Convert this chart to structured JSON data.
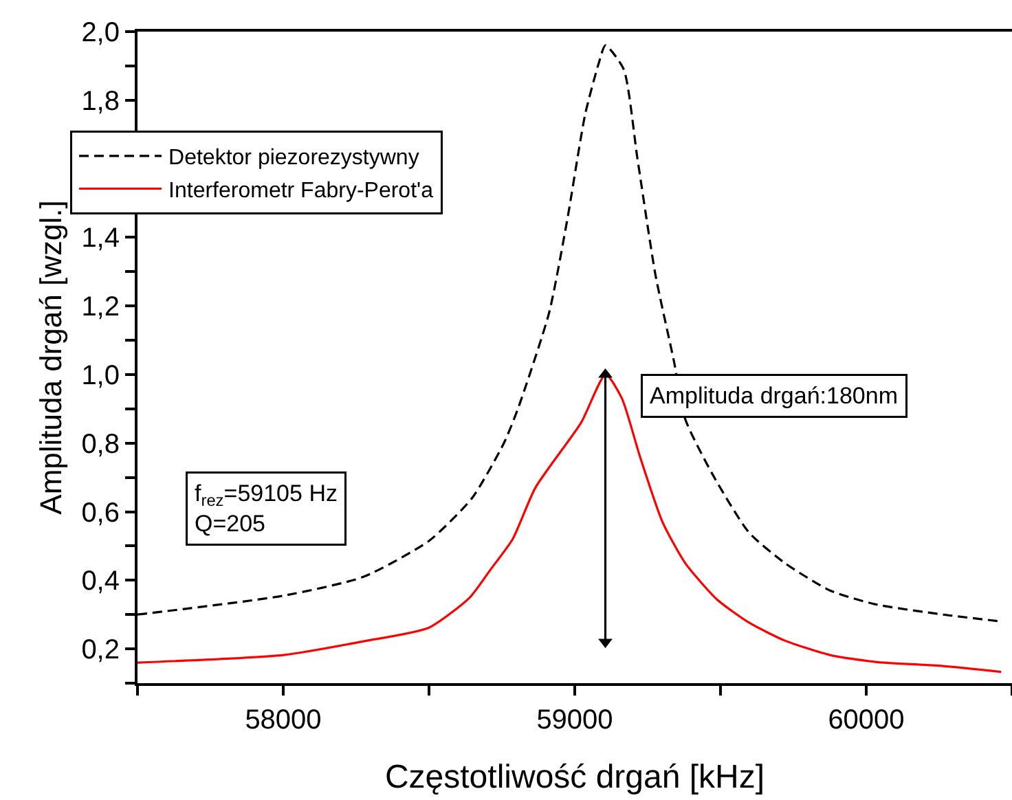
{
  "chart_data": {
    "type": "line",
    "xlabel": "Częstotliwość drgań [kHz]",
    "ylabel": "Amplituda drgań [wzgl.]",
    "xlim": [
      57500,
      60500
    ],
    "xticks": [
      {
        "value": 57500,
        "label": null
      },
      58000,
      {
        "value": 58500,
        "label": null
      },
      59000,
      {
        "value": 59500,
        "label": null
      },
      60000,
      {
        "value": 60500,
        "label": null
      }
    ],
    "ylim": [
      0.1,
      2.0
    ],
    "yticks": [
      {
        "value": 0.1,
        "label": null
      },
      {
        "value": 0.2,
        "label": "0,2"
      },
      {
        "value": 0.3,
        "label": null
      },
      {
        "value": 0.4,
        "label": "0,4"
      },
      {
        "value": 0.5,
        "label": null
      },
      {
        "value": 0.6,
        "label": "0,6"
      },
      {
        "value": 0.7,
        "label": null
      },
      {
        "value": 0.8,
        "label": "0,8"
      },
      {
        "value": 0.9,
        "label": null
      },
      {
        "value": 1.0,
        "label": "1,0"
      },
      {
        "value": 1.1,
        "label": null
      },
      {
        "value": 1.2,
        "label": "1,2"
      },
      {
        "value": 1.3,
        "label": null
      },
      {
        "value": 1.4,
        "label": "1,4"
      },
      {
        "value": 1.5,
        "label": null
      },
      {
        "value": 1.6,
        "label": null
      },
      {
        "value": 1.7,
        "label": null
      },
      {
        "value": 1.8,
        "label": "1,8"
      },
      {
        "value": 1.9,
        "label": null
      },
      {
        "value": 2.0,
        "label": "2,0"
      }
    ],
    "legend": "top left",
    "marker": "none",
    "series": [
      {
        "name": "Detektor piezorezystywny",
        "color": "#000000",
        "line_style": "dashed",
        "x": [
          57500,
          58000,
          58275,
          58500,
          58648,
          58757,
          58805,
          58912,
          58974,
          59036,
          59083,
          59105,
          59168,
          59215,
          59277,
          59340,
          59379,
          59472,
          59597,
          59721,
          59876,
          60031,
          60264,
          60463
        ],
        "values": [
          0.3,
          0.355,
          0.41,
          0.515,
          0.64,
          0.8,
          0.9,
          1.18,
          1.45,
          1.76,
          1.91,
          1.96,
          1.89,
          1.63,
          1.29,
          1.04,
          0.87,
          0.71,
          0.54,
          0.45,
          0.37,
          0.33,
          0.3,
          0.28
        ]
      },
      {
        "name": "Interferometr Fabry-Perot'a",
        "color": "#ff0000",
        "line_style": "solid",
        "x": [
          57500,
          58000,
          58275,
          58500,
          58640,
          58710,
          58787,
          58865,
          59022,
          59106,
          59162,
          59224,
          59301,
          59379,
          59488,
          59597,
          59721,
          59876,
          60031,
          60264,
          60463
        ],
        "values": [
          0.16,
          0.182,
          0.222,
          0.262,
          0.35,
          0.43,
          0.52,
          0.67,
          0.86,
          1.0,
          0.93,
          0.76,
          0.57,
          0.45,
          0.344,
          0.277,
          0.224,
          0.182,
          0.162,
          0.15,
          0.133
        ]
      },
      {
        "type": "line",
        "color": "#000000",
        "line_style": "solid",
        "marker": "triangle",
        "x": [
          59105,
          59105
        ],
        "values": [
          0.22,
          1.0
        ]
      }
    ],
    "annotations": [
      "f$_{rez}$=59105 Hz\nQ=205",
      "Amplituda drgań:180nm"
    ]
  }
}
